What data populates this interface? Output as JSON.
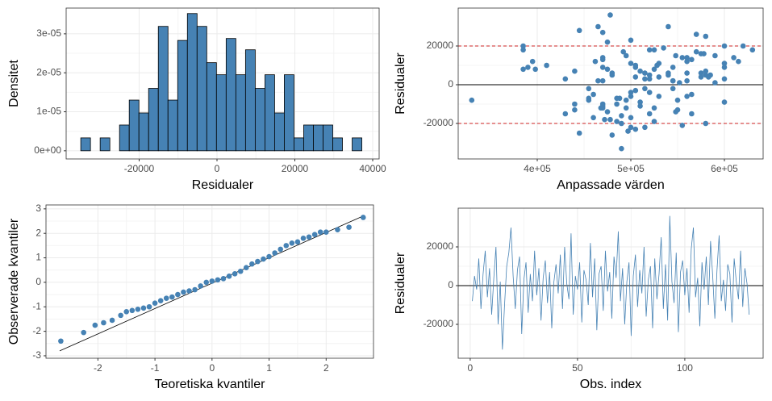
{
  "chart_data": [
    {
      "type": "histogram",
      "xlabel": "Residualer",
      "ylabel": "Densitet",
      "color": "#4682b4",
      "edgecolor": "#000000",
      "grid": true,
      "bins": [
        -35000,
        -32510,
        -30020,
        -27530,
        -25040,
        -22550,
        -20060,
        -17570,
        -15080,
        -12590,
        -10100,
        -7610,
        -5120,
        -2630,
        -140,
        2350,
        4840,
        7330,
        9820,
        12310,
        14800,
        17290,
        19780,
        22270,
        24760,
        27250,
        29740,
        32230,
        34720,
        37210
      ],
      "values": [
        3.3e-06,
        0,
        3.3e-06,
        0,
        6.6e-06,
        1.3e-05,
        9.7e-06,
        1.6e-05,
        3.19e-05,
        1.3e-05,
        2.83e-05,
        3.52e-05,
        3.19e-05,
        2.26e-05,
        1.95e-05,
        2.88e-05,
        1.95e-05,
        2.59e-05,
        1.6e-05,
        1.95e-05,
        9.7e-06,
        1.95e-05,
        3.3e-06,
        6.6e-06,
        6.6e-06,
        6.6e-06,
        3.3e-06,
        0,
        3.3e-06
      ],
      "xlim": [
        -38756,
        41658
      ],
      "ylim": [
        -2.1e-06,
        3.66e-05
      ],
      "xticks": [
        -20000,
        0,
        20000,
        40000
      ],
      "yticks": [
        {
          "value": 0,
          "label": "0e+00"
        },
        {
          "value": 1e-05,
          "label": "1e-05"
        },
        {
          "value": 2e-05,
          "label": "2e-05"
        },
        {
          "value": 3e-05,
          "label": "3e-05"
        }
      ]
    },
    {
      "type": "scatter",
      "xlabel": "Anpassade värden",
      "ylabel": "Residualer",
      "color": "#4682b4",
      "grid": true,
      "hlines": [
        0
      ],
      "hline_color": "#000000",
      "dashed_hlines": [
        20000,
        -20000
      ],
      "dashed_color": "#cc2222",
      "x": [
        330000,
        520000,
        455000,
        610000,
        470000,
        560000,
        385000,
        500000,
        545000,
        430000,
        575000,
        600000,
        490000,
        465000,
        490000,
        440000,
        505000,
        570000,
        540000,
        480000,
        495000,
        385000,
        590000,
        445000,
        520000,
        560000,
        475000,
        515000,
        455000,
        520000,
        460000,
        390000,
        478000,
        530000,
        565000,
        510000,
        440000,
        515000,
        470000,
        600000,
        500000,
        578000,
        468000,
        385000,
        552000,
        485000,
        470000,
        520000,
        580000,
        545000,
        462000,
        485000,
        398000,
        515000,
        470000,
        475000,
        530000,
        555000,
        505000,
        480000,
        528000,
        440000,
        525000,
        505000,
        580000,
        460000,
        548000,
        505000,
        445000,
        550000,
        470000,
        580000,
        560000,
        395000,
        480000,
        540000,
        575000,
        470000,
        525000,
        520000,
        620000,
        490000,
        600000,
        410000,
        500000,
        560000,
        455000,
        575000,
        580000,
        525000,
        530000,
        472000,
        478000,
        545000,
        600000,
        492000,
        497000,
        510000,
        470000,
        565000,
        505000,
        548000,
        535000,
        465000,
        560000,
        583000,
        555000,
        615000,
        515000,
        495000,
        485000,
        500000,
        585000,
        500000,
        475000,
        570000,
        495000,
        430000,
        550000,
        500000,
        540000,
        525000,
        470000,
        545000,
        488000,
        630000,
        510000,
        600000,
        590000,
        565000
      ],
      "values": [
        -8000,
        5000,
        -2000,
        14000,
        -12000,
        6000,
        18000,
        -6000,
        9000,
        -15000,
        4000,
        20000,
        -20000,
        2000,
        -33000,
        -10000,
        10000,
        17000,
        30000,
        5000,
        -12000,
        8000,
        15000,
        -25000,
        3000,
        12000,
        -14000,
        6000,
        -8000,
        18000,
        -5000,
        9000,
        -18000,
        4000,
        13000,
        -9000,
        7000,
        -22000,
        2000,
        11000,
        -4000,
        16000,
        -12000,
        20000,
        1000,
        -7000,
        27000,
        -15000,
        5000,
        -2000,
        12000,
        -19000,
        8000,
        3000,
        -10000,
        22000,
        -6000,
        14000,
        -23000,
        6000,
        10000,
        -13000,
        18000,
        -3000,
        7000,
        -17000,
        15000,
        4000,
        28000,
        -8000,
        9000,
        -20000,
        2000,
        12000,
        -26000,
        5000,
        16000,
        -11000,
        8000,
        -4000,
        20000,
        -16000,
        3000,
        10000,
        -22000,
        14000,
        -7000,
        6000,
        25000,
        -12000,
        11000,
        -18000,
        36000,
        2000,
        -9000,
        17000,
        -24000,
        7000,
        13000,
        -5000,
        9000,
        -14000,
        19000,
        30000,
        -6000,
        4000,
        -21000,
        12000,
        -2000,
        15000,
        -10000,
        23000,
        5000,
        -17000,
        8000,
        26000,
        -8000,
        3000,
        -13000,
        11000,
        6000,
        -19000,
        14000,
        2000,
        -7000,
        18000,
        -11000,
        9000,
        1000,
        -15000
      ],
      "xlim": [
        315517,
        641379
      ],
      "ylim": [
        -38333,
        39583
      ],
      "xticks": [
        {
          "value": 400000,
          "label": "4e+05"
        },
        {
          "value": 500000,
          "label": "5e+05"
        },
        {
          "value": 600000,
          "label": "6e+05"
        }
      ],
      "yticks": [
        -20000,
        0,
        20000
      ]
    },
    {
      "type": "scatter",
      "xlabel": "Teoretiska kvantiler",
      "ylabel": "Observerade kvantiler",
      "color": "#4682b4",
      "grid": true,
      "x": [
        -2.65,
        -2.25,
        -2.05,
        -1.9,
        -1.75,
        -1.6,
        -1.5,
        -1.4,
        -1.3,
        -1.2,
        -1.1,
        -1.0,
        -0.9,
        -0.8,
        -0.7,
        -0.6,
        -0.5,
        -0.4,
        -0.3,
        -0.2,
        -0.1,
        0,
        0.1,
        0.2,
        0.3,
        0.4,
        0.5,
        0.6,
        0.7,
        0.8,
        0.9,
        1.0,
        1.1,
        1.2,
        1.3,
        1.4,
        1.5,
        1.6,
        1.7,
        1.8,
        1.9,
        2.0,
        2.2,
        2.4,
        2.65
      ],
      "values": [
        -2.4,
        -2.05,
        -1.75,
        -1.65,
        -1.55,
        -1.35,
        -1.2,
        -1.15,
        -1.1,
        -1.05,
        -1.0,
        -0.85,
        -0.75,
        -0.65,
        -0.6,
        -0.5,
        -0.4,
        -0.35,
        -0.3,
        -0.15,
        0.0,
        0.05,
        0.1,
        0.15,
        0.25,
        0.35,
        0.45,
        0.6,
        0.75,
        0.85,
        0.95,
        1.05,
        1.2,
        1.35,
        1.5,
        1.6,
        1.65,
        1.8,
        1.85,
        1.95,
        2.05,
        2.05,
        2.15,
        2.25,
        2.65
      ],
      "reference_line": {
        "x": [
          -2.67,
          2.64
        ],
        "y": [
          -2.8,
          2.7
        ],
        "color": "#000000"
      },
      "xlim": [
        -2.91,
        2.83
      ],
      "ylim": [
        -3.1,
        3.16
      ],
      "xticks": [
        -2,
        -1,
        0,
        1,
        2
      ],
      "yticks": [
        -3,
        -2,
        -1,
        0,
        1,
        2,
        3
      ]
    },
    {
      "type": "line",
      "xlabel": "Obs. index",
      "ylabel": "Residualer",
      "color": "#4682b4",
      "grid": true,
      "hlines": [
        0
      ],
      "hline_color": "#000000",
      "x": [
        1,
        2,
        3,
        4,
        5,
        6,
        7,
        8,
        9,
        10,
        11,
        12,
        13,
        14,
        15,
        16,
        17,
        18,
        19,
        20,
        21,
        22,
        23,
        24,
        25,
        26,
        27,
        28,
        29,
        30,
        31,
        32,
        33,
        34,
        35,
        36,
        37,
        38,
        39,
        40,
        41,
        42,
        43,
        44,
        45,
        46,
        47,
        48,
        49,
        50,
        51,
        52,
        53,
        54,
        55,
        56,
        57,
        58,
        59,
        60,
        61,
        62,
        63,
        64,
        65,
        66,
        67,
        68,
        69,
        70,
        71,
        72,
        73,
        74,
        75,
        76,
        77,
        78,
        79,
        80,
        81,
        82,
        83,
        84,
        85,
        86,
        87,
        88,
        89,
        90,
        91,
        92,
        93,
        94,
        95,
        96,
        97,
        98,
        99,
        100,
        101,
        102,
        103,
        104,
        105,
        106,
        107,
        108,
        109,
        110,
        111,
        112,
        113,
        114,
        115,
        116,
        117,
        118,
        119,
        120,
        121,
        122,
        123,
        124,
        125,
        126,
        127,
        128,
        129,
        130
      ],
      "values": [
        -8000,
        5000,
        -2000,
        14000,
        -12000,
        6000,
        18000,
        -6000,
        9000,
        -15000,
        4000,
        20000,
        -20000,
        2000,
        -33000,
        -10000,
        10000,
        17000,
        30000,
        5000,
        -12000,
        8000,
        15000,
        -25000,
        3000,
        12000,
        -14000,
        6000,
        -8000,
        18000,
        -5000,
        9000,
        -18000,
        4000,
        13000,
        -9000,
        7000,
        -22000,
        2000,
        11000,
        -4000,
        16000,
        -12000,
        20000,
        1000,
        -7000,
        27000,
        -15000,
        5000,
        -2000,
        12000,
        -19000,
        8000,
        3000,
        -10000,
        22000,
        -6000,
        14000,
        -23000,
        6000,
        10000,
        -13000,
        18000,
        -3000,
        7000,
        -17000,
        15000,
        4000,
        28000,
        -8000,
        9000,
        -20000,
        2000,
        12000,
        -26000,
        5000,
        16000,
        -11000,
        8000,
        -4000,
        20000,
        -16000,
        3000,
        10000,
        -22000,
        14000,
        -7000,
        6000,
        25000,
        -12000,
        11000,
        -18000,
        36000,
        2000,
        -9000,
        17000,
        -24000,
        7000,
        13000,
        -5000,
        9000,
        -14000,
        19000,
        30000,
        -6000,
        4000,
        -21000,
        12000,
        -2000,
        15000,
        -10000,
        23000,
        5000,
        -17000,
        8000,
        26000,
        -8000,
        3000,
        -13000,
        11000,
        6000,
        -19000,
        14000,
        2000,
        -7000,
        18000,
        -11000,
        9000,
        1000,
        -15000
      ],
      "xlim": [
        -5.6,
        136.5
      ],
      "ylim": [
        -37500,
        40000
      ],
      "xticks": [
        0,
        50,
        100
      ],
      "yticks": [
        -20000,
        0,
        20000
      ]
    }
  ]
}
